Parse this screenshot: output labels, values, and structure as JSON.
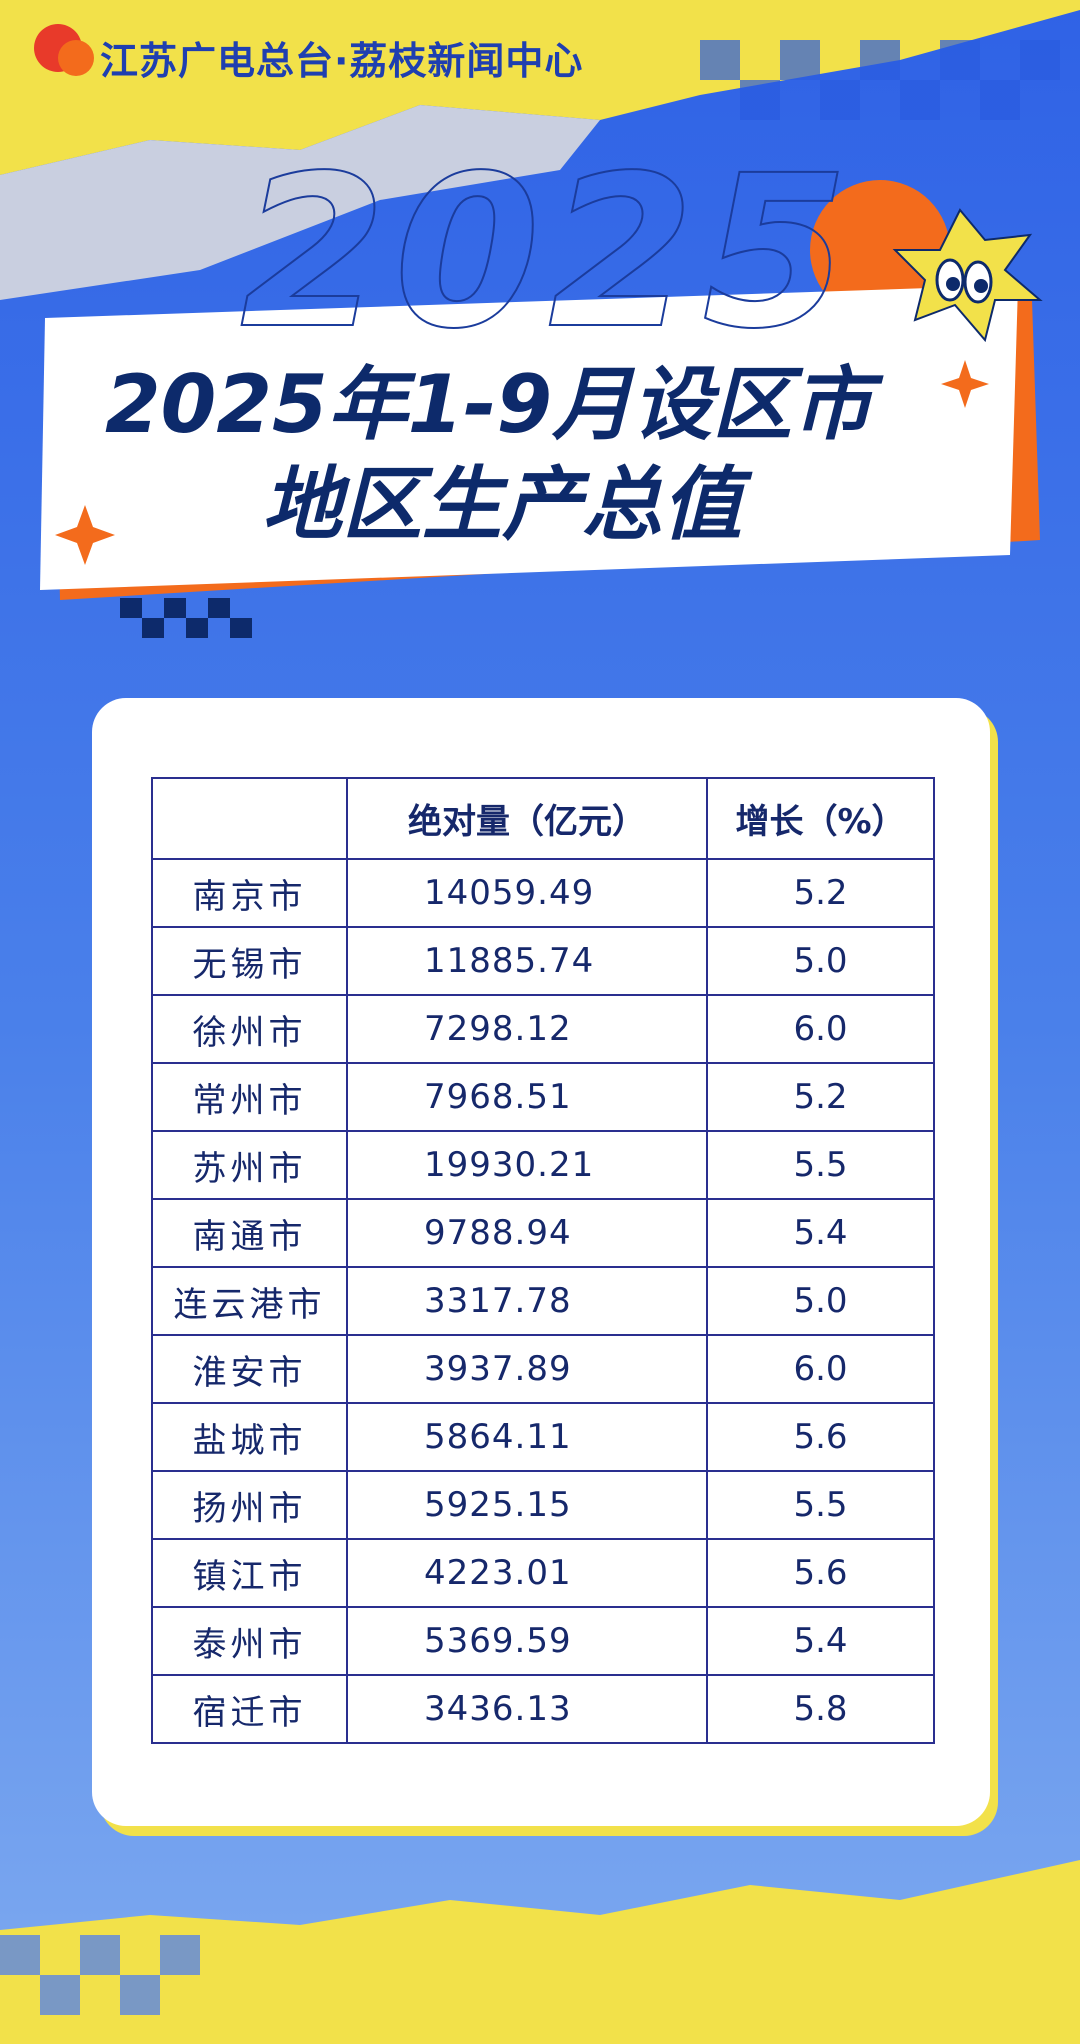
{
  "header": {
    "logo": "江苏广电总台·荔枝新闻中心",
    "decoration_text": "2025"
  },
  "title": {
    "line1": "2025年1-9月设区市",
    "line2": "地区生产总值"
  },
  "table": {
    "columns": [
      "绝对量（亿元）",
      "增长（%）"
    ],
    "rows": [
      [
        "南京市",
        "14059.49",
        "5.2"
      ],
      [
        "无锡市",
        "11885.74",
        "5.0"
      ],
      [
        "徐州市",
        "7298.12",
        "6.0"
      ],
      [
        "常州市",
        "7968.51",
        "5.2"
      ],
      [
        "苏州市",
        "19930.21",
        "5.5"
      ],
      [
        "南通市",
        "9788.94",
        "5.4"
      ],
      [
        "连云港市",
        "3317.78",
        "5.0"
      ],
      [
        "淮安市",
        "3937.89",
        "6.0"
      ],
      [
        "盐城市",
        "5864.11",
        "5.6"
      ],
      [
        "扬州市",
        "5925.15",
        "5.5"
      ],
      [
        "镇江市",
        "4223.01",
        "5.6"
      ],
      [
        "泰州市",
        "5369.59",
        "5.4"
      ],
      [
        "宿迁市",
        "3436.13",
        "5.8"
      ]
    ]
  }
}
